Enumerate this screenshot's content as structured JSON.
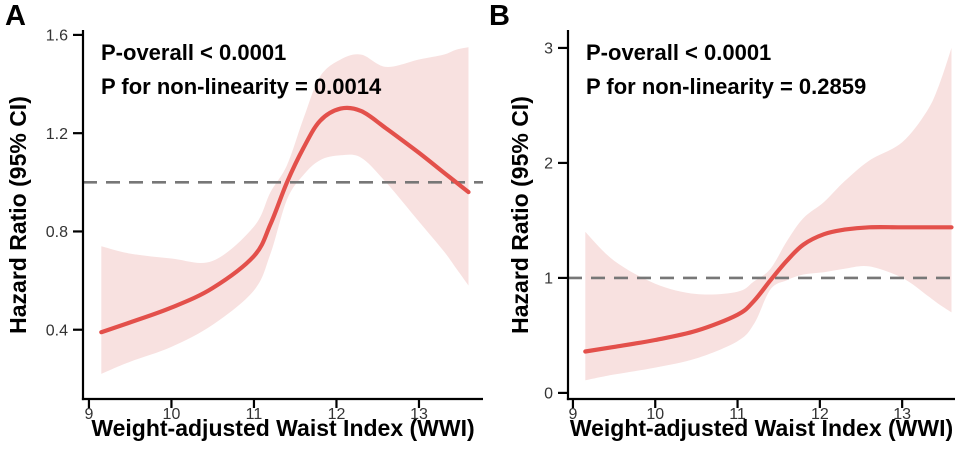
{
  "figure": {
    "background": "#ffffff",
    "description": "Restricted cubic spline plots of hazard ratio versus weight-adjusted waist index, panels A and B"
  },
  "chart_data": [
    {
      "type": "line",
      "panel_label": "A",
      "annotations": [
        "P-overall < 0.0001",
        "P for non-linearity = 0.0014"
      ],
      "xlabel": "Weight-adjusted Waist Index (WWI)",
      "ylabel": "Hazard Ratio (95% CI)",
      "x": [
        9.15,
        9.5,
        10.0,
        10.5,
        11.0,
        11.2,
        11.4,
        11.6,
        11.8,
        12.05,
        12.3,
        12.6,
        13.0,
        13.3,
        13.45,
        13.6
      ],
      "series": [
        {
          "name": "hazard_ratio",
          "values": [
            0.39,
            0.43,
            0.49,
            0.57,
            0.7,
            0.83,
            1.0,
            1.14,
            1.25,
            1.3,
            1.29,
            1.22,
            1.12,
            1.04,
            1.0,
            0.96
          ]
        },
        {
          "name": "ci_lower",
          "values": [
            0.22,
            0.27,
            0.33,
            0.42,
            0.56,
            0.71,
            0.93,
            1.03,
            1.09,
            1.11,
            1.1,
            1.0,
            0.84,
            0.72,
            0.65,
            0.58
          ]
        },
        {
          "name": "ci_upper",
          "values": [
            0.74,
            0.71,
            0.69,
            0.68,
            0.82,
            0.96,
            1.07,
            1.26,
            1.43,
            1.5,
            1.52,
            1.47,
            1.5,
            1.52,
            1.54,
            1.55
          ]
        }
      ],
      "reference_line_y": 1.0,
      "xlim": [
        8.928,
        13.776
      ],
      "ylim": [
        0.118,
        1.62
      ],
      "xticks": {
        "values": [
          9,
          10,
          11,
          12,
          13
        ],
        "labels": [
          "9",
          "10",
          "11",
          "12",
          "13"
        ]
      },
      "yticks": {
        "values": [
          0.4,
          0.8,
          1.2,
          1.6
        ],
        "labels": [
          "0.4",
          "0.8",
          "1.2",
          "1.6"
        ]
      },
      "grid": false,
      "legend": "none",
      "colors": {
        "curve": "#E3504B",
        "band": "#F8E1E0",
        "reference_line": "#777777",
        "axis": "#000000",
        "tick_text": "#333333"
      }
    },
    {
      "type": "line",
      "panel_label": "B",
      "annotations": [
        "P-overall < 0.0001",
        "P for non-linearity = 0.2859"
      ],
      "xlabel": "Weight-adjusted Waist Index (WWI)",
      "ylabel": "Hazard Ratio (95% CI)",
      "x": [
        9.15,
        9.5,
        10.0,
        10.5,
        11.0,
        11.2,
        11.4,
        11.6,
        11.8,
        12.05,
        12.3,
        12.6,
        13.0,
        13.3,
        13.45,
        13.6
      ],
      "series": [
        {
          "name": "hazard_ratio",
          "values": [
            0.36,
            0.4,
            0.46,
            0.54,
            0.68,
            0.8,
            0.98,
            1.15,
            1.29,
            1.38,
            1.42,
            1.44,
            1.44,
            1.44,
            1.44,
            1.44
          ]
        },
        {
          "name": "ci_lower",
          "values": [
            0.11,
            0.16,
            0.22,
            0.3,
            0.45,
            0.6,
            0.9,
            0.98,
            1.03,
            1.05,
            1.08,
            1.1,
            1.0,
            0.85,
            0.77,
            0.7
          ]
        },
        {
          "name": "ci_upper",
          "values": [
            1.4,
            1.15,
            0.95,
            0.86,
            0.88,
            0.97,
            1.08,
            1.32,
            1.52,
            1.66,
            1.84,
            2.02,
            2.18,
            2.45,
            2.68,
            3.0
          ]
        }
      ],
      "reference_line_y": 1.0,
      "xlim": [
        8.94,
        13.642
      ],
      "ylim": [
        -0.053,
        3.156
      ],
      "xticks": {
        "values": [
          9,
          10,
          11,
          12,
          13
        ],
        "labels": [
          "9",
          "10",
          "11",
          "12",
          "13"
        ]
      },
      "yticks": {
        "values": [
          0,
          1,
          2,
          3
        ],
        "labels": [
          "0",
          "1",
          "2",
          "3"
        ]
      },
      "grid": false,
      "legend": "none",
      "colors": {
        "curve": "#E3504B",
        "band": "#F8E1E0",
        "reference_line": "#777777",
        "axis": "#000000",
        "tick_text": "#333333"
      }
    }
  ]
}
